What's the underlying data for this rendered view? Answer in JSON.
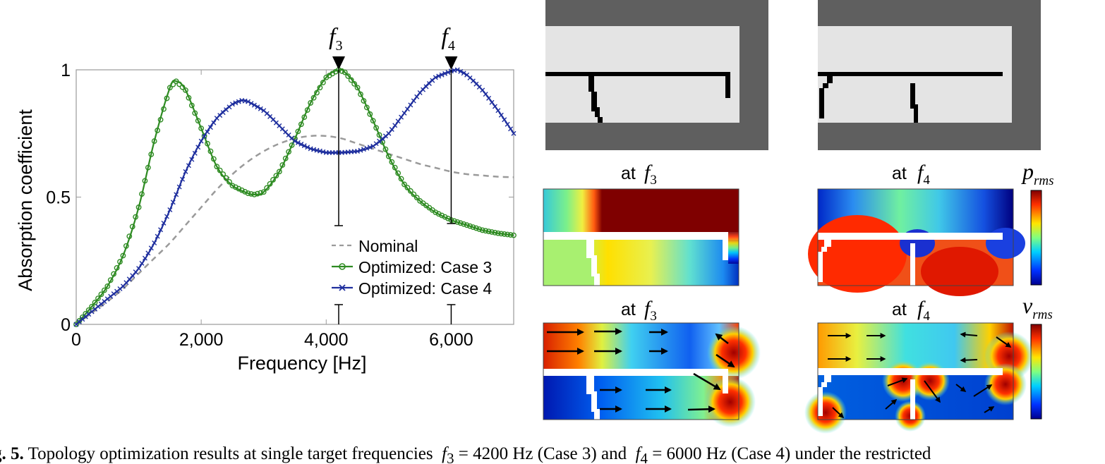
{
  "chart_data": {
    "type": "line",
    "xlabel": "Frequency [Hz]",
    "ylabel": "Absorption coefficient",
    "xlim": [
      0,
      7000
    ],
    "ylim": [
      0,
      1
    ],
    "xticks": [
      0,
      2000,
      4000,
      6000
    ],
    "xtick_labels": [
      "0",
      "2,000",
      "4,000",
      "6,000"
    ],
    "yticks": [
      0,
      0.5,
      1
    ],
    "ytick_labels": [
      "0",
      "0.5",
      "1"
    ],
    "grid": false,
    "legend_position": "bottom-right",
    "markers": [
      {
        "label": "f",
        "subscript": "3",
        "x": 4200
      },
      {
        "label": "f",
        "subscript": "4",
        "x": 6000
      }
    ],
    "series": [
      {
        "name": "Nominal",
        "color": "#9a9a9a",
        "style": "dashed",
        "marker": "none",
        "x": [
          0,
          250,
          500,
          750,
          1000,
          1250,
          1500,
          1750,
          2000,
          2250,
          2500,
          2750,
          3000,
          3250,
          3500,
          3750,
          4000,
          4250,
          4500,
          4750,
          5000,
          5250,
          5500,
          5750,
          6000,
          6250,
          6500,
          6750,
          7000
        ],
        "y": [
          0,
          0.045,
          0.09,
          0.14,
          0.2,
          0.26,
          0.32,
          0.39,
          0.46,
          0.53,
          0.59,
          0.64,
          0.68,
          0.71,
          0.73,
          0.74,
          0.74,
          0.73,
          0.71,
          0.69,
          0.67,
          0.65,
          0.63,
          0.615,
          0.6,
          0.59,
          0.585,
          0.58,
          0.578
        ]
      },
      {
        "name": "Optimized: Case 3",
        "color": "#2e8b22",
        "style": "solid",
        "marker": "circle",
        "x": [
          0,
          250,
          500,
          750,
          1000,
          1250,
          1500,
          1600,
          1750,
          2000,
          2250,
          2500,
          2750,
          2850,
          3000,
          3250,
          3500,
          3750,
          4000,
          4200,
          4300,
          4500,
          4750,
          5000,
          5250,
          5500,
          5750,
          6000,
          6250,
          6500,
          6750,
          7000
        ],
        "y": [
          0,
          0.07,
          0.15,
          0.27,
          0.46,
          0.72,
          0.93,
          0.955,
          0.92,
          0.77,
          0.62,
          0.545,
          0.515,
          0.51,
          0.52,
          0.6,
          0.73,
          0.87,
          0.97,
          1.0,
          0.99,
          0.93,
          0.8,
          0.66,
          0.55,
          0.485,
          0.44,
          0.41,
          0.39,
          0.37,
          0.358,
          0.35
        ]
      },
      {
        "name": "Optimized: Case 4",
        "color": "#1f2f9e",
        "style": "solid",
        "marker": "x",
        "x": [
          0,
          250,
          500,
          750,
          1000,
          1250,
          1500,
          1750,
          2000,
          2250,
          2500,
          2650,
          2750,
          3000,
          3250,
          3500,
          3750,
          4000,
          4250,
          4500,
          4750,
          5000,
          5250,
          5500,
          5750,
          6000,
          6100,
          6250,
          6500,
          6750,
          7000
        ],
        "y": [
          0,
          0.05,
          0.1,
          0.15,
          0.22,
          0.32,
          0.45,
          0.6,
          0.72,
          0.81,
          0.865,
          0.88,
          0.875,
          0.84,
          0.78,
          0.72,
          0.69,
          0.675,
          0.675,
          0.68,
          0.7,
          0.75,
          0.83,
          0.91,
          0.97,
          0.995,
          1.0,
          0.98,
          0.92,
          0.84,
          0.75
        ]
      }
    ]
  },
  "figure": {
    "label_at": "at",
    "panel_labels": [
      {
        "symbol": "f",
        "sub": "3"
      },
      {
        "symbol": "f",
        "sub": "4"
      },
      {
        "symbol": "f",
        "sub": "3"
      },
      {
        "symbol": "f",
        "sub": "4"
      }
    ],
    "colorbar_labels": [
      {
        "symbol": "p",
        "sub": "rms"
      },
      {
        "symbol": "v",
        "sub": "rms"
      }
    ],
    "colors": {
      "wall": "#5f5f5f",
      "cavity": "#e4e4e4",
      "partition": "#000000"
    }
  },
  "caption": {
    "label": "g. 5.",
    "text_1": "Topology optimization results at single target frequencies",
    "f3": "f",
    "f3_sub": "3",
    "eq_1": "= 4200 Hz (Case 3) and",
    "f4": "f",
    "f4_sub": "4",
    "eq_2": "= 6000 Hz (Case 4) under the restricted"
  }
}
